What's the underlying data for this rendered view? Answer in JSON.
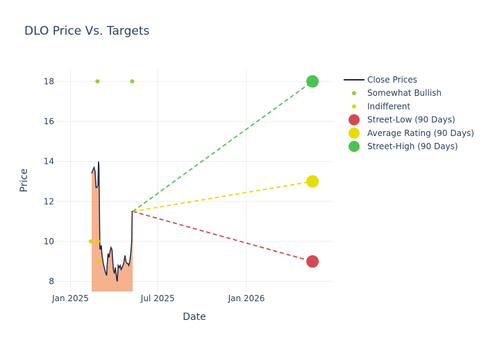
{
  "chart_data": {
    "type": "line",
    "title": "DLO Price Vs. Targets",
    "xlabel": "Date",
    "ylabel": "Price",
    "xlim": [
      "2024-12-01",
      "2026-06-30"
    ],
    "ylim": [
      7.5,
      18.6
    ],
    "grid": true,
    "legend_position": "right",
    "x_ticks": [
      {
        "date": "2025-01-01",
        "label": "Jan 2025"
      },
      {
        "date": "2025-07-01",
        "label": "Jul 2025"
      },
      {
        "date": "2026-01-01",
        "label": "Jan 2026"
      }
    ],
    "y_ticks": [
      8,
      10,
      12,
      14,
      16,
      18
    ],
    "series": [
      {
        "name": "Close Prices",
        "kind": "line",
        "color": "#1f2a44",
        "fill": "#f5b28e",
        "points": [
          [
            "2025-02-14",
            13.4
          ],
          [
            "2025-02-17",
            13.6
          ],
          [
            "2025-02-19",
            13.7
          ],
          [
            "2025-02-21",
            13.5
          ],
          [
            "2025-02-23",
            12.7
          ],
          [
            "2025-02-25",
            12.7
          ],
          [
            "2025-02-27",
            12.8
          ],
          [
            "2025-02-28",
            14.0
          ],
          [
            "2025-03-01",
            13.8
          ],
          [
            "2025-03-03",
            9.6
          ],
          [
            "2025-03-04",
            9.8
          ],
          [
            "2025-03-05",
            9.6
          ],
          [
            "2025-03-06",
            9.8
          ],
          [
            "2025-03-07",
            9.4
          ],
          [
            "2025-03-10",
            8.9
          ],
          [
            "2025-03-12",
            8.7
          ],
          [
            "2025-03-14",
            8.5
          ],
          [
            "2025-03-17",
            8.3
          ],
          [
            "2025-03-18",
            8.8
          ],
          [
            "2025-03-20",
            9.4
          ],
          [
            "2025-03-22",
            9.2
          ],
          [
            "2025-03-24",
            9.5
          ],
          [
            "2025-03-26",
            9.7
          ],
          [
            "2025-03-28",
            9.6
          ],
          [
            "2025-03-31",
            8.6
          ],
          [
            "2025-04-02",
            8.4
          ],
          [
            "2025-04-04",
            8.7
          ],
          [
            "2025-04-07",
            8.1
          ],
          [
            "2025-04-08",
            8.0
          ],
          [
            "2025-04-10",
            8.8
          ],
          [
            "2025-04-12",
            8.7
          ],
          [
            "2025-04-14",
            8.8
          ],
          [
            "2025-04-16",
            8.6
          ],
          [
            "2025-04-18",
            8.7
          ],
          [
            "2025-04-20",
            8.8
          ],
          [
            "2025-04-22",
            9.0
          ],
          [
            "2025-04-24",
            9.3
          ],
          [
            "2025-04-26",
            9.0
          ],
          [
            "2025-04-28",
            8.9
          ],
          [
            "2025-04-30",
            8.9
          ],
          [
            "2025-05-02",
            8.8
          ],
          [
            "2025-05-04",
            9.0
          ],
          [
            "2025-05-06",
            9.4
          ],
          [
            "2025-05-08",
            10.0
          ],
          [
            "2025-05-09",
            11.5
          ],
          [
            "2025-05-10",
            11.5
          ]
        ]
      },
      {
        "name": "Somewhat Bullish",
        "kind": "markers",
        "color": "#9acd32",
        "points": [
          [
            "2025-02-26",
            18
          ],
          [
            "2025-05-09",
            18
          ]
        ]
      },
      {
        "name": "Indifferent",
        "kind": "markers",
        "color": "#e0d400",
        "points": [
          [
            "2025-02-12",
            10
          ],
          [
            "2025-02-27",
            10
          ],
          [
            "2025-03-01",
            9
          ]
        ]
      },
      {
        "name": "Street-Low (90 Days)",
        "kind": "target",
        "color": "#d44a50",
        "from": [
          "2025-05-10",
          11.5
        ],
        "to": [
          "2026-05-18",
          9
        ]
      },
      {
        "name": "Average Rating (90 Days)",
        "kind": "target",
        "color": "#e6dd00",
        "from": [
          "2025-05-10",
          11.5
        ],
        "to": [
          "2026-05-18",
          13
        ]
      },
      {
        "name": "Street-High (90 Days)",
        "kind": "target",
        "color": "#4cc451",
        "from": [
          "2025-05-10",
          11.5
        ],
        "to": [
          "2026-05-18",
          18
        ]
      }
    ]
  }
}
